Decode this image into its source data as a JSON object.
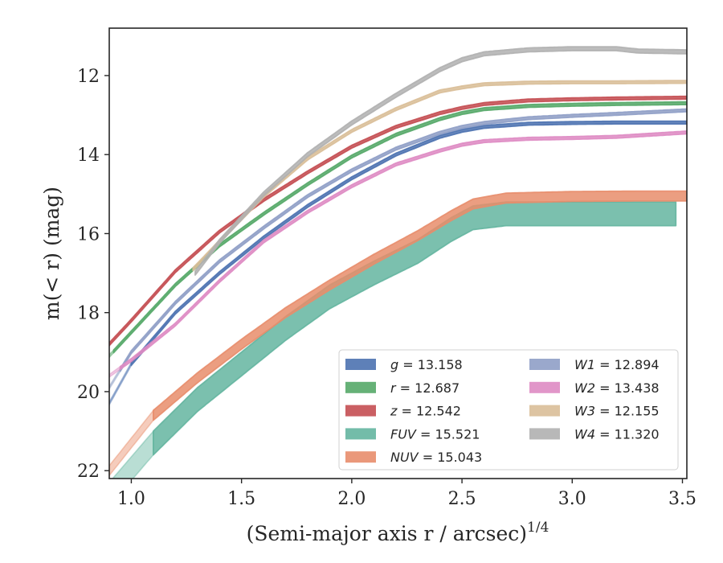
{
  "chart_data": {
    "type": "area",
    "xlabel": "(Semi-major axis r / arcsec)",
    "xlabel_superscript": "1/4",
    "ylabel": "m(< r) (mag)",
    "xlim": [
      0.9,
      3.52
    ],
    "ylim": [
      22.2,
      10.8
    ],
    "y_inverted": true,
    "grid": false,
    "legend_position": "lower-right",
    "x_ticks": [
      1.0,
      1.5,
      2.0,
      2.5,
      3.0,
      3.5
    ],
    "x_tick_labels": [
      "1.0",
      "1.5",
      "2.0",
      "2.5",
      "3.0",
      "3.5"
    ],
    "y_ticks": [
      12,
      14,
      16,
      18,
      20,
      22
    ],
    "y_tick_labels": [
      "12",
      "14",
      "16",
      "18",
      "20",
      "22"
    ],
    "series": [
      {
        "name": "g = 13.158",
        "label_var": "g",
        "label_val": "13.158",
        "color": "#4c72b0",
        "band": 0.07,
        "faint_until": 1.0,
        "x": [
          0.9,
          1.0,
          1.2,
          1.4,
          1.6,
          1.8,
          2.0,
          2.2,
          2.4,
          2.5,
          2.6,
          2.8,
          3.0,
          3.2,
          3.52
        ],
        "y": [
          20.3,
          19.3,
          18.0,
          17.0,
          16.1,
          15.3,
          14.6,
          14.0,
          13.55,
          13.4,
          13.3,
          13.22,
          13.2,
          13.19,
          13.19
        ]
      },
      {
        "name": "r = 12.687",
        "label_var": "r",
        "label_val": "12.687",
        "color": "#55a868",
        "band": 0.07,
        "faint_until": 0.92,
        "x": [
          0.9,
          1.0,
          1.2,
          1.4,
          1.6,
          1.8,
          2.0,
          2.2,
          2.4,
          2.5,
          2.6,
          2.8,
          3.0,
          3.2,
          3.52
        ],
        "y": [
          19.1,
          18.5,
          17.3,
          16.3,
          15.5,
          14.75,
          14.05,
          13.5,
          13.1,
          12.95,
          12.85,
          12.77,
          12.74,
          12.72,
          12.7
        ]
      },
      {
        "name": "z = 12.542",
        "label_var": "z",
        "label_val": "12.542",
        "color": "#c44e52",
        "band": 0.07,
        "faint_until": 0.9,
        "x": [
          0.9,
          1.0,
          1.2,
          1.4,
          1.6,
          1.8,
          2.0,
          2.2,
          2.4,
          2.5,
          2.6,
          2.8,
          3.0,
          3.2,
          3.52
        ],
        "y": [
          18.8,
          18.2,
          16.95,
          15.95,
          15.15,
          14.45,
          13.8,
          13.3,
          12.95,
          12.82,
          12.72,
          12.63,
          12.6,
          12.58,
          12.56
        ]
      },
      {
        "name": "FUV = 15.521",
        "label_var": "FUV",
        "label_val": "15.521",
        "color": "#64b5a0",
        "band": 0.6,
        "faint_until": 1.1,
        "x_end": 3.47,
        "x": [
          0.9,
          1.1,
          1.3,
          1.5,
          1.7,
          1.9,
          2.1,
          2.3,
          2.45,
          2.55,
          2.7,
          3.0,
          3.3,
          3.52
        ],
        "y": [
          22.6,
          21.3,
          20.2,
          19.3,
          18.4,
          17.6,
          17.0,
          16.45,
          15.9,
          15.6,
          15.5,
          15.5,
          15.5,
          15.5
        ]
      },
      {
        "name": "NUV = 15.043",
        "label_var": "NUV",
        "label_val": "15.043",
        "color": "#e88d6b",
        "band": 0.25,
        "faint_until": 1.1,
        "x": [
          0.9,
          1.1,
          1.3,
          1.5,
          1.7,
          1.9,
          2.1,
          2.3,
          2.45,
          2.55,
          2.7,
          3.0,
          3.3,
          3.52
        ],
        "y": [
          22.0,
          20.6,
          19.65,
          18.8,
          18.0,
          17.3,
          16.65,
          16.05,
          15.55,
          15.25,
          15.1,
          15.06,
          15.05,
          15.05
        ]
      },
      {
        "name": "W1 = 12.894",
        "label_var": "W1",
        "label_val": "12.894",
        "color": "#8f9fc6",
        "band": 0.07,
        "faint_until": 0.95,
        "x": [
          0.9,
          1.0,
          1.2,
          1.4,
          1.6,
          1.8,
          2.0,
          2.2,
          2.4,
          2.5,
          2.6,
          2.8,
          3.0,
          3.2,
          3.52
        ],
        "y": [
          19.9,
          19.0,
          17.75,
          16.7,
          15.85,
          15.05,
          14.4,
          13.85,
          13.45,
          13.3,
          13.2,
          13.08,
          13.02,
          12.97,
          12.88
        ]
      },
      {
        "name": "W2 = 13.438",
        "label_var": "W2",
        "label_val": "13.438",
        "color": "#de8bc3",
        "band": 0.07,
        "faint_until": 0.95,
        "x": [
          0.9,
          1.0,
          1.2,
          1.4,
          1.6,
          1.8,
          2.0,
          2.2,
          2.4,
          2.5,
          2.6,
          2.8,
          3.0,
          3.2,
          3.52
        ],
        "y": [
          19.6,
          19.2,
          18.3,
          17.2,
          16.2,
          15.45,
          14.8,
          14.25,
          13.9,
          13.75,
          13.66,
          13.6,
          13.58,
          13.55,
          13.44
        ]
      },
      {
        "name": "W3 = 12.155",
        "label_var": "W3",
        "label_val": "12.155",
        "color": "#d9be98",
        "band": 0.07,
        "x_start": 1.28,
        "x": [
          1.28,
          1.4,
          1.6,
          1.8,
          2.0,
          2.2,
          2.4,
          2.5,
          2.6,
          2.8,
          3.0,
          3.2,
          3.52
        ],
        "y": [
          16.9,
          16.2,
          15.05,
          14.1,
          13.4,
          12.85,
          12.4,
          12.3,
          12.22,
          12.18,
          12.17,
          12.17,
          12.16
        ]
      },
      {
        "name": "W4 = 11.320",
        "label_var": "W4",
        "label_val": "11.320",
        "color": "#b0b0b0",
        "band": 0.1,
        "x_start": 1.29,
        "x": [
          1.29,
          1.4,
          1.6,
          1.8,
          2.0,
          2.2,
          2.4,
          2.5,
          2.6,
          2.8,
          3.0,
          3.2,
          3.3,
          3.52
        ],
        "y": [
          17.0,
          16.2,
          15.0,
          14.0,
          13.2,
          12.5,
          11.85,
          11.6,
          11.45,
          11.35,
          11.32,
          11.32,
          11.38,
          11.4
        ]
      }
    ]
  }
}
